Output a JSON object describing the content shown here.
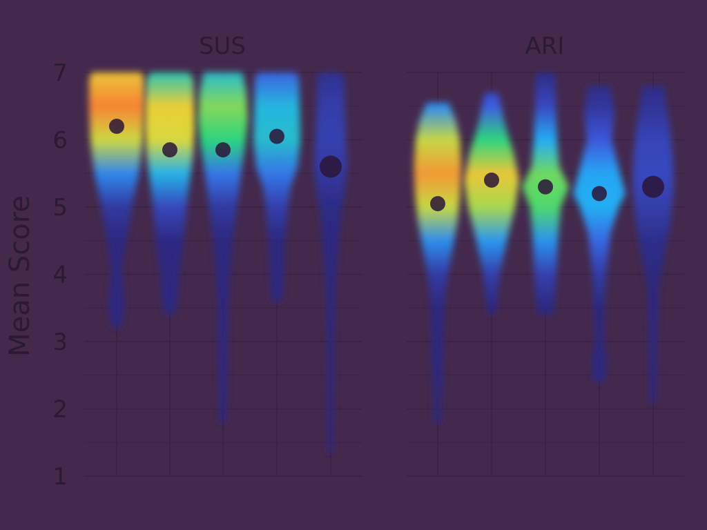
{
  "chart_data": {
    "type": "violin",
    "ylabel": "Mean Score",
    "ylim": [
      1,
      7
    ],
    "yticks": [
      "1",
      "2",
      "3",
      "4",
      "5",
      "6",
      "7"
    ],
    "grid": true,
    "colors": {
      "background": "#44294d",
      "grid": "#3b2344",
      "text": "#2a1a33",
      "median_dot": "#2b1537",
      "palette": [
        "#ff8c32",
        "#f2e03a",
        "#2fe07c",
        "#22b9ff",
        "#3a55e0",
        "#1c1d74"
      ]
    },
    "panels": [
      {
        "title": "SUS",
        "groups": [
          {
            "min": 3.2,
            "max": 7.0,
            "median": 6.2,
            "peak": 6.55,
            "profile": [
              [
                3.2,
                0.15
              ],
              [
                3.5,
                0.3
              ],
              [
                3.8,
                0.25
              ],
              [
                4.1,
                0.2
              ],
              [
                4.5,
                0.35
              ],
              [
                5.0,
                0.55
              ],
              [
                5.5,
                0.8
              ],
              [
                5.8,
                0.9
              ],
              [
                6.0,
                0.95
              ],
              [
                6.5,
                1.0
              ],
              [
                6.9,
                1.0
              ],
              [
                7.0,
                0.9
              ]
            ]
          },
          {
            "min": 3.4,
            "max": 7.0,
            "median": 5.85,
            "peak": 6.3,
            "profile": [
              [
                3.4,
                0.15
              ],
              [
                3.6,
                0.3
              ],
              [
                4.0,
                0.35
              ],
              [
                4.5,
                0.5
              ],
              [
                5.0,
                0.6
              ],
              [
                5.5,
                0.75
              ],
              [
                5.8,
                0.85
              ],
              [
                6.2,
                0.9
              ],
              [
                6.6,
                0.88
              ],
              [
                6.9,
                0.85
              ],
              [
                7.0,
                0.7
              ]
            ]
          },
          {
            "min": 1.8,
            "max": 7.0,
            "median": 5.85,
            "peak": 6.4,
            "profile": [
              [
                1.8,
                0.12
              ],
              [
                2.5,
                0.15
              ],
              [
                3.5,
                0.18
              ],
              [
                4.0,
                0.25
              ],
              [
                4.5,
                0.35
              ],
              [
                5.0,
                0.5
              ],
              [
                5.5,
                0.65
              ],
              [
                5.9,
                0.8
              ],
              [
                6.3,
                0.9
              ],
              [
                6.7,
                0.85
              ],
              [
                7.0,
                0.7
              ]
            ]
          },
          {
            "min": 3.6,
            "max": 7.0,
            "median": 6.05,
            "peak": 6.2,
            "profile": [
              [
                3.6,
                0.2
              ],
              [
                4.0,
                0.25
              ],
              [
                4.5,
                0.3
              ],
              [
                5.0,
                0.4
              ],
              [
                5.3,
                0.5
              ],
              [
                5.6,
                0.75
              ],
              [
                6.0,
                0.85
              ],
              [
                6.5,
                0.82
              ],
              [
                6.9,
                0.8
              ],
              [
                7.0,
                0.7
              ]
            ]
          },
          {
            "min": 1.35,
            "max": 7.0,
            "median": 5.6,
            "peak": 6.1,
            "profile": [
              [
                1.35,
                0.1
              ],
              [
                2.5,
                0.12
              ],
              [
                3.5,
                0.15
              ],
              [
                4.0,
                0.2
              ],
              [
                4.5,
                0.3
              ],
              [
                4.8,
                0.35
              ],
              [
                5.2,
                0.5
              ],
              [
                5.6,
                0.6
              ],
              [
                6.0,
                0.55
              ],
              [
                6.5,
                0.5
              ],
              [
                6.9,
                0.5
              ],
              [
                7.0,
                0.4
              ]
            ]
          }
        ]
      },
      {
        "title": "ARI",
        "groups": [
          {
            "min": 1.8,
            "max": 6.55,
            "median": 5.05,
            "peak": 5.5,
            "profile": [
              [
                1.8,
                0.15
              ],
              [
                2.1,
                0.12
              ],
              [
                2.6,
                0.2
              ],
              [
                3.2,
                0.22
              ],
              [
                3.8,
                0.3
              ],
              [
                4.3,
                0.5
              ],
              [
                4.8,
                0.72
              ],
              [
                5.2,
                0.82
              ],
              [
                5.6,
                0.86
              ],
              [
                6.0,
                0.8
              ],
              [
                6.3,
                0.65
              ],
              [
                6.55,
                0.4
              ]
            ]
          },
          {
            "min": 3.4,
            "max": 6.7,
            "median": 5.4,
            "peak": 5.4,
            "profile": [
              [
                3.4,
                0.15
              ],
              [
                3.6,
                0.2
              ],
              [
                4.0,
                0.3
              ],
              [
                4.5,
                0.55
              ],
              [
                5.0,
                0.85
              ],
              [
                5.4,
                1.0
              ],
              [
                5.8,
                0.8
              ],
              [
                6.2,
                0.5
              ],
              [
                6.5,
                0.35
              ],
              [
                6.7,
                0.25
              ]
            ]
          },
          {
            "min": 3.4,
            "max": 7.0,
            "median": 5.3,
            "peak": 5.3,
            "profile": [
              [
                3.4,
                0.3
              ],
              [
                3.7,
                0.35
              ],
              [
                4.0,
                0.4
              ],
              [
                4.5,
                0.45
              ],
              [
                5.0,
                0.55
              ],
              [
                5.3,
                0.85
              ],
              [
                5.6,
                0.5
              ],
              [
                6.0,
                0.42
              ],
              [
                6.5,
                0.38
              ],
              [
                7.0,
                0.35
              ]
            ]
          },
          {
            "min": 2.4,
            "max": 6.8,
            "median": 5.2,
            "peak": 5.2,
            "profile": [
              [
                2.4,
                0.2
              ],
              [
                2.7,
                0.28
              ],
              [
                3.0,
                0.15
              ],
              [
                3.5,
                0.2
              ],
              [
                4.0,
                0.25
              ],
              [
                4.6,
                0.4
              ],
              [
                5.0,
                0.7
              ],
              [
                5.2,
                0.95
              ],
              [
                5.5,
                0.75
              ],
              [
                6.0,
                0.45
              ],
              [
                6.4,
                0.55
              ],
              [
                6.8,
                0.4
              ]
            ]
          },
          {
            "min": 2.1,
            "max": 6.8,
            "median": 5.3,
            "peak": 5.6,
            "profile": [
              [
                2.1,
                0.12
              ],
              [
                3.0,
                0.15
              ],
              [
                3.8,
                0.2
              ],
              [
                4.2,
                0.38
              ],
              [
                4.7,
                0.6
              ],
              [
                5.3,
                0.75
              ],
              [
                5.8,
                0.7
              ],
              [
                6.2,
                0.6
              ],
              [
                6.6,
                0.45
              ],
              [
                6.8,
                0.4
              ]
            ]
          }
        ]
      }
    ]
  }
}
